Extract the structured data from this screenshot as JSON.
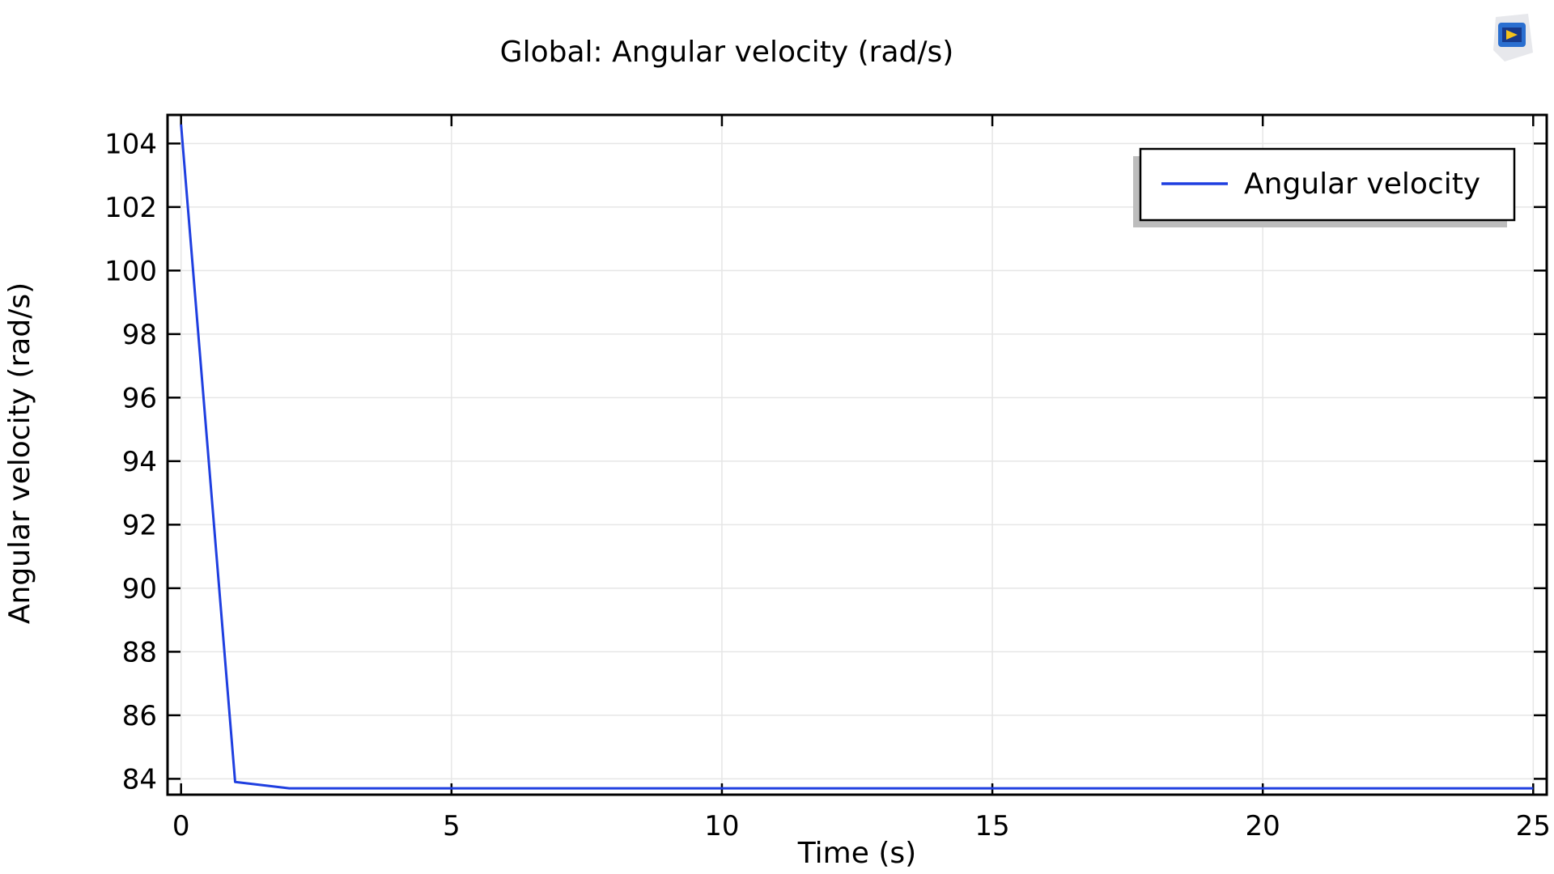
{
  "chart_data": {
    "type": "line",
    "title": "Global: Angular velocity (rad/s)",
    "xlabel": "Time (s)",
    "ylabel": "Angular velocity (rad/s)",
    "xlim": [
      -0.25,
      25.25
    ],
    "ylim": [
      83.5,
      104.9
    ],
    "xticks": [
      0,
      5,
      10,
      15,
      20,
      25
    ],
    "yticks": [
      84,
      86,
      88,
      90,
      92,
      94,
      96,
      98,
      100,
      102,
      104
    ],
    "grid": true,
    "legend_position": "top-right",
    "series": [
      {
        "name": "Angular velocity",
        "color": "#1f3fe0",
        "x": [
          0,
          1,
          2,
          3,
          4,
          5,
          6,
          7,
          8,
          9,
          10,
          11,
          12,
          13,
          14,
          15,
          16,
          17,
          18,
          19,
          20,
          21,
          22,
          23,
          24,
          25
        ],
        "y": [
          104.6,
          83.9,
          83.7,
          83.7,
          83.7,
          83.7,
          83.7,
          83.7,
          83.7,
          83.7,
          83.7,
          83.7,
          83.7,
          83.7,
          83.7,
          83.7,
          83.7,
          83.7,
          83.7,
          83.7,
          83.7,
          83.7,
          83.7,
          83.7,
          83.7,
          83.7
        ]
      }
    ]
  },
  "icons": {
    "corner_logo": "app-logo-icon"
  }
}
